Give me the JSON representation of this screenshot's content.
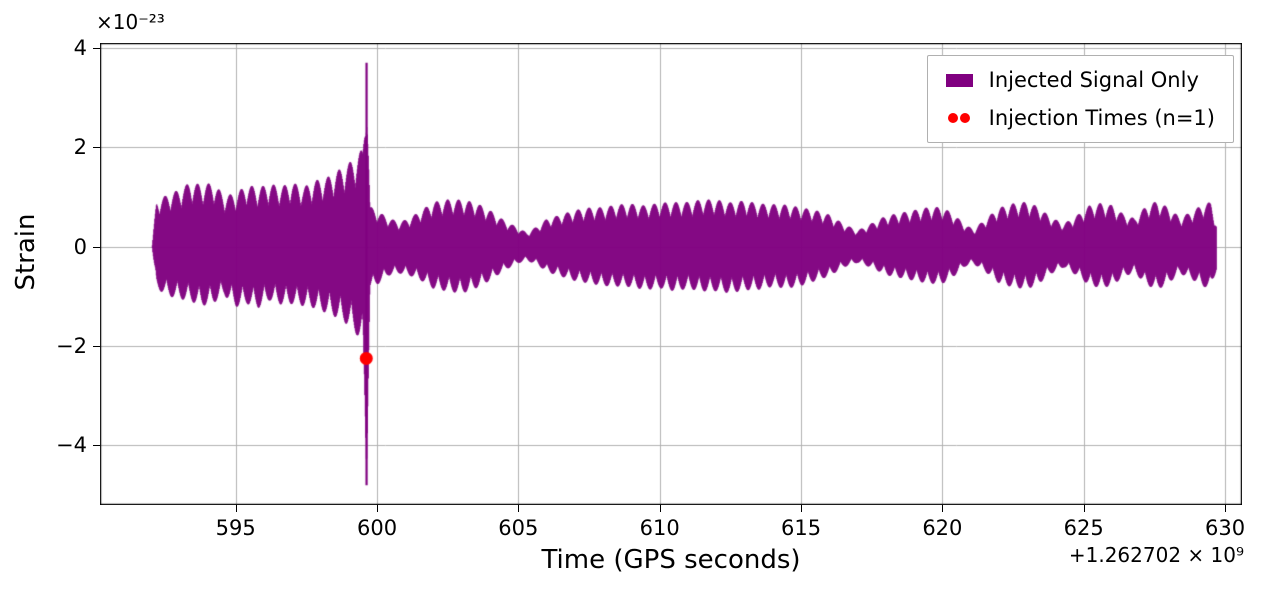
{
  "figure": {
    "y_scale_label": "×10⁻²³",
    "x_offset_label": "+1.262702 × 10⁹",
    "xlabel": "Time (GPS seconds)",
    "ylabel": "Strain"
  },
  "legend": {
    "items": [
      {
        "label": "Injected Signal Only",
        "color": "#800080",
        "marker": "line"
      },
      {
        "label": "Injection Times (n=1)",
        "color": "#ff0000",
        "marker": "dots"
      }
    ]
  },
  "chart_data": {
    "type": "line",
    "title": "",
    "xlabel": "Time (GPS seconds)",
    "ylabel": "Strain",
    "x_offset_value": "+1.262702e9",
    "y_scale_value": "1e-23",
    "xlim": [
      590.2,
      630.6
    ],
    "ylim": [
      -5.2,
      4.1
    ],
    "xticks": [
      595,
      600,
      605,
      610,
      615,
      620,
      625,
      630
    ],
    "yticks": [
      -4,
      -2,
      0,
      2,
      4
    ],
    "grid": true,
    "grid_color": "#b0b0b0",
    "signal_color": "#800080",
    "injection_color": "#ff0000",
    "injection": {
      "x": 599.62,
      "y": -2.25
    },
    "spike": {
      "x": 599.63,
      "ymax": 3.7,
      "ymin": -4.8
    },
    "envelope": [
      [
        592.05,
        0.03,
        0.03
      ],
      [
        592.2,
        0.95,
        0.85
      ],
      [
        592.6,
        1.05,
        1.0
      ],
      [
        593.0,
        1.15,
        1.05
      ],
      [
        593.4,
        1.3,
        1.1
      ],
      [
        593.8,
        1.25,
        1.2
      ],
      [
        594.2,
        1.3,
        1.15
      ],
      [
        594.6,
        1.05,
        1.0
      ],
      [
        595.0,
        1.1,
        1.25
      ],
      [
        595.4,
        1.3,
        1.2
      ],
      [
        595.8,
        1.25,
        1.3
      ],
      [
        596.2,
        1.35,
        1.15
      ],
      [
        596.6,
        1.3,
        1.25
      ],
      [
        597.0,
        1.4,
        1.25
      ],
      [
        597.4,
        1.3,
        1.3
      ],
      [
        597.8,
        1.45,
        1.35
      ],
      [
        598.2,
        1.5,
        1.45
      ],
      [
        598.6,
        1.65,
        1.55
      ],
      [
        599.0,
        1.8,
        1.7
      ],
      [
        599.3,
        1.95,
        1.9
      ],
      [
        599.5,
        2.1,
        2.15
      ],
      [
        599.63,
        3.7,
        4.8
      ],
      [
        599.75,
        0.85,
        0.9
      ],
      [
        600.0,
        0.75,
        0.8
      ],
      [
        600.4,
        0.6,
        0.6
      ],
      [
        600.8,
        0.5,
        0.55
      ],
      [
        601.2,
        0.6,
        0.6
      ],
      [
        601.6,
        0.75,
        0.7
      ],
      [
        602.0,
        0.9,
        0.85
      ],
      [
        602.5,
        0.95,
        0.9
      ],
      [
        603.0,
        0.95,
        0.95
      ],
      [
        603.5,
        0.9,
        0.85
      ],
      [
        604.0,
        0.75,
        0.7
      ],
      [
        604.5,
        0.55,
        0.5
      ],
      [
        605.0,
        0.4,
        0.35
      ],
      [
        605.3,
        0.3,
        0.3
      ],
      [
        605.7,
        0.45,
        0.4
      ],
      [
        606.0,
        0.6,
        0.55
      ],
      [
        606.5,
        0.7,
        0.65
      ],
      [
        607.0,
        0.8,
        0.75
      ],
      [
        607.5,
        0.85,
        0.8
      ],
      [
        608.0,
        0.85,
        0.85
      ],
      [
        608.5,
        0.9,
        0.85
      ],
      [
        609.0,
        0.9,
        0.85
      ],
      [
        609.5,
        0.85,
        0.9
      ],
      [
        610.0,
        0.9,
        0.85
      ],
      [
        610.5,
        0.9,
        0.9
      ],
      [
        611.0,
        0.9,
        0.85
      ],
      [
        611.5,
        0.95,
        0.9
      ],
      [
        612.0,
        0.95,
        0.9
      ],
      [
        612.5,
        0.9,
        0.95
      ],
      [
        613.0,
        0.95,
        0.9
      ],
      [
        613.5,
        0.9,
        0.9
      ],
      [
        614.0,
        0.9,
        0.85
      ],
      [
        614.5,
        0.9,
        0.9
      ],
      [
        615.0,
        0.85,
        0.85
      ],
      [
        615.5,
        0.8,
        0.75
      ],
      [
        616.0,
        0.7,
        0.65
      ],
      [
        616.5,
        0.5,
        0.45
      ],
      [
        617.0,
        0.35,
        0.35
      ],
      [
        617.5,
        0.5,
        0.45
      ],
      [
        618.0,
        0.65,
        0.6
      ],
      [
        618.5,
        0.7,
        0.65
      ],
      [
        619.0,
        0.75,
        0.7
      ],
      [
        619.5,
        0.8,
        0.75
      ],
      [
        620.0,
        0.8,
        0.75
      ],
      [
        620.4,
        0.65,
        0.6
      ],
      [
        620.8,
        0.45,
        0.4
      ],
      [
        621.1,
        0.35,
        0.35
      ],
      [
        621.5,
        0.55,
        0.5
      ],
      [
        622.0,
        0.8,
        0.75
      ],
      [
        622.5,
        0.9,
        0.85
      ],
      [
        623.0,
        0.95,
        0.9
      ],
      [
        623.4,
        0.85,
        0.8
      ],
      [
        623.8,
        0.65,
        0.6
      ],
      [
        624.3,
        0.5,
        0.45
      ],
      [
        624.8,
        0.7,
        0.65
      ],
      [
        625.2,
        0.9,
        0.85
      ],
      [
        625.6,
        0.95,
        0.9
      ],
      [
        626.0,
        0.9,
        0.85
      ],
      [
        626.4,
        0.7,
        0.65
      ],
      [
        626.8,
        0.6,
        0.55
      ],
      [
        627.2,
        0.85,
        0.8
      ],
      [
        627.6,
        0.95,
        0.9
      ],
      [
        628.0,
        0.8,
        0.75
      ],
      [
        628.4,
        0.6,
        0.55
      ],
      [
        628.8,
        0.7,
        0.65
      ],
      [
        629.2,
        0.85,
        0.8
      ],
      [
        629.5,
        0.9,
        0.85
      ],
      [
        629.7,
        0.45,
        0.45
      ]
    ]
  }
}
